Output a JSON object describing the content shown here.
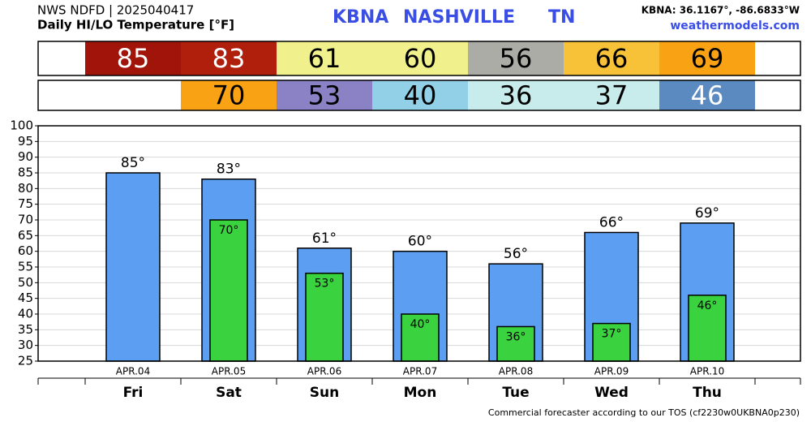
{
  "chart_data": {
    "type": "bar",
    "source": "NWS NDFD | 2025040417",
    "title": "Daily HI/LO Temperature [°F]",
    "station": "KBNA",
    "city": "NASHVILLE",
    "state": "TN",
    "coords": "KBNA: 36.1167°, -86.6833°W",
    "site": "weathermodels.com",
    "footer": "Commercial forecaster according to our TOS (cf2230w0UKBNA0p230)",
    "categories": [
      "Fri",
      "Sat",
      "Sun",
      "Mon",
      "Tue",
      "Wed",
      "Thu"
    ],
    "dates": [
      "APR.04",
      "APR.05",
      "APR.06",
      "APR.07",
      "APR.08",
      "APR.09",
      "APR.10"
    ],
    "series": [
      {
        "color": "#5b9ef2",
        "values": [
          85,
          83,
          61,
          60,
          56,
          66,
          69
        ],
        "value_labels": [
          "85°",
          "83°",
          "61°",
          "60°",
          "56°",
          "66°",
          "69°"
        ],
        "cell_colors": [
          "#a0140a",
          "#b01e0c",
          "#f0f08c",
          "#f0f08c",
          "#acaca6",
          "#f8c238",
          "#f8a214"
        ],
        "cell_text_colors": [
          "#ffffff",
          "#ffffff",
          "#000000",
          "#000000",
          "#000000",
          "#000000",
          "#000000"
        ]
      },
      {
        "color": "#3ad23e",
        "values": [
          null,
          70,
          53,
          40,
          36,
          37,
          46
        ],
        "value_labels": [
          null,
          "70°",
          "53°",
          "40°",
          "36°",
          "37°",
          "46°"
        ],
        "cell_colors": [
          null,
          "#f8a214",
          "#8a82c4",
          "#92d0e8",
          "#c8ecec",
          "#c8ecec",
          "#5a8ac0"
        ],
        "cell_text_colors": [
          null,
          "#000000",
          "#000000",
          "#000000",
          "#000000",
          "#000000",
          "#ffffff"
        ]
      }
    ],
    "ylim": [
      25,
      100
    ],
    "yticks": [
      25,
      30,
      35,
      40,
      45,
      50,
      55,
      60,
      65,
      70,
      75,
      80,
      85,
      90,
      95,
      100
    ],
    "grid": true
  }
}
